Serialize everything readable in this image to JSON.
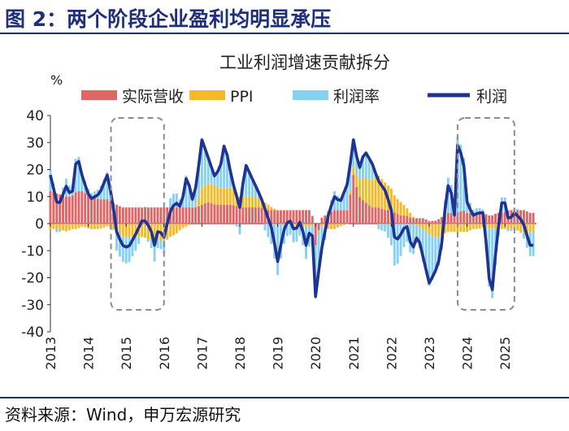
{
  "figure_title": "图 2：两个阶段企业盈利均明显承压",
  "source": "资料来源：Wind，申万宏源研究",
  "colors": {
    "revenue": "#e06666",
    "ppi": "#f6b928",
    "margin": "#86d0f3",
    "profit": "#1f3391",
    "header": "#1f2f7a",
    "box": "#8c8c8c"
  },
  "chart_data": {
    "type": "bar",
    "title": "工业利润增速贡献拆分",
    "ylabel": "%",
    "ylim": [
      -40,
      40
    ],
    "yticks": [
      40,
      30,
      20,
      10,
      0,
      -10,
      -20,
      -30,
      -40
    ],
    "xticks": [
      "2013",
      "2014",
      "2015",
      "2016",
      "2017",
      "2018",
      "2019",
      "2020",
      "2021",
      "2022",
      "2023",
      "2024",
      "2025"
    ],
    "legend": {
      "position": "top",
      "entries": [
        {
          "name": "实际营收",
          "type": "bar"
        },
        {
          "name": "PPI",
          "type": "bar"
        },
        {
          "name": "利润率",
          "type": "bar"
        },
        {
          "name": "利润",
          "type": "line"
        }
      ]
    },
    "x_start": 2013.0,
    "x_end": 2025.833,
    "highlight_periods": [
      [
        2014.6,
        2016.0
      ],
      [
        2023.75,
        2025.25
      ]
    ],
    "key_points": [
      {
        "x": 2013.0,
        "profit": 18,
        "revenue": 12,
        "ppi": -2,
        "margin": 8
      },
      {
        "x": 2013.2,
        "profit": 6,
        "revenue": 11,
        "ppi": -2,
        "margin": -3
      },
      {
        "x": 2013.45,
        "profit": 15,
        "revenue": 10,
        "ppi": -3,
        "margin": 8
      },
      {
        "x": 2013.55,
        "profit": 8,
        "revenue": 10,
        "ppi": -2,
        "margin": 0
      },
      {
        "x": 2013.7,
        "profit": 26,
        "revenue": 12,
        "ppi": -2,
        "margin": 16
      },
      {
        "x": 2013.85,
        "profit": 17,
        "revenue": 12,
        "ppi": -1,
        "margin": 6
      },
      {
        "x": 2014.05,
        "profit": 9,
        "revenue": 10,
        "ppi": -2,
        "margin": 1
      },
      {
        "x": 2014.3,
        "profit": 11,
        "revenue": 9,
        "ppi": -2,
        "margin": 4
      },
      {
        "x": 2014.5,
        "profit": 18,
        "revenue": 9,
        "ppi": -1,
        "margin": 10
      },
      {
        "x": 2014.62,
        "profit": 10,
        "revenue": 8,
        "ppi": -2,
        "margin": 4
      },
      {
        "x": 2014.75,
        "profit": -3,
        "revenue": 7,
        "ppi": -2,
        "margin": -8
      },
      {
        "x": 2014.9,
        "profit": -8,
        "revenue": 6,
        "ppi": -5,
        "margin": -9
      },
      {
        "x": 2015.05,
        "profit": -9,
        "revenue": 6,
        "ppi": -5,
        "margin": -10
      },
      {
        "x": 2015.25,
        "profit": -4,
        "revenue": 6,
        "ppi": -5,
        "margin": -5
      },
      {
        "x": 2015.45,
        "profit": 2,
        "revenue": 6,
        "ppi": -5,
        "margin": 1
      },
      {
        "x": 2015.65,
        "profit": -2,
        "revenue": 6,
        "ppi": -6,
        "margin": -2
      },
      {
        "x": 2015.75,
        "profit": -8,
        "revenue": 6,
        "ppi": -6,
        "margin": -8
      },
      {
        "x": 2015.85,
        "profit": -2,
        "revenue": 6,
        "ppi": -6,
        "margin": -2
      },
      {
        "x": 2016.0,
        "profit": -5,
        "revenue": 6,
        "ppi": -6,
        "margin": -5
      },
      {
        "x": 2016.15,
        "profit": 4,
        "revenue": 6,
        "ppi": -5,
        "margin": 3
      },
      {
        "x": 2016.3,
        "profit": 8,
        "revenue": 6,
        "ppi": -4,
        "margin": 6
      },
      {
        "x": 2016.45,
        "profit": 6,
        "revenue": 6,
        "ppi": -2,
        "margin": 2
      },
      {
        "x": 2016.6,
        "profit": 18,
        "revenue": 6,
        "ppi": -1,
        "margin": 13
      },
      {
        "x": 2016.75,
        "profit": 9,
        "revenue": 6,
        "ppi": 0,
        "margin": 3
      },
      {
        "x": 2016.85,
        "profit": 14,
        "revenue": 6,
        "ppi": 1,
        "margin": 7
      },
      {
        "x": 2017.0,
        "profit": 31,
        "revenue": 7,
        "ppi": 6,
        "margin": 18
      },
      {
        "x": 2017.15,
        "profit": 25,
        "revenue": 8,
        "ppi": 7,
        "margin": 10
      },
      {
        "x": 2017.35,
        "profit": 17,
        "revenue": 7,
        "ppi": 7,
        "margin": 3
      },
      {
        "x": 2017.5,
        "profit": 22,
        "revenue": 7,
        "ppi": 6,
        "margin": 9
      },
      {
        "x": 2017.6,
        "profit": 30,
        "revenue": 7,
        "ppi": 6,
        "margin": 17
      },
      {
        "x": 2017.8,
        "profit": 16,
        "revenue": 7,
        "ppi": 6,
        "margin": 3
      },
      {
        "x": 2018.0,
        "profit": 6,
        "revenue": 6,
        "ppi": 4,
        "margin": -4
      },
      {
        "x": 2018.15,
        "profit": 22,
        "revenue": 6,
        "ppi": 4,
        "margin": 12
      },
      {
        "x": 2018.35,
        "profit": 16,
        "revenue": 6,
        "ppi": 4,
        "margin": 6
      },
      {
        "x": 2018.55,
        "profit": 10,
        "revenue": 6,
        "ppi": 3,
        "margin": 1
      },
      {
        "x": 2018.75,
        "profit": 2,
        "revenue": 5,
        "ppi": 2,
        "margin": -5
      },
      {
        "x": 2018.85,
        "profit": -2,
        "revenue": 5,
        "ppi": 1,
        "margin": -8
      },
      {
        "x": 2019.0,
        "profit": -14,
        "revenue": 5,
        "ppi": 0,
        "margin": -19
      },
      {
        "x": 2019.15,
        "profit": -3,
        "revenue": 5,
        "ppi": 0,
        "margin": -8
      },
      {
        "x": 2019.3,
        "profit": 2,
        "revenue": 5,
        "ppi": 0,
        "margin": -3
      },
      {
        "x": 2019.45,
        "profit": -3,
        "revenue": 5,
        "ppi": -1,
        "margin": -7
      },
      {
        "x": 2019.6,
        "profit": 1,
        "revenue": 5,
        "ppi": -1,
        "margin": -3
      },
      {
        "x": 2019.75,
        "profit": -8,
        "revenue": 5,
        "ppi": -1,
        "margin": -12
      },
      {
        "x": 2019.9,
        "profit": 0,
        "revenue": 5,
        "ppi": -1,
        "margin": -4
      },
      {
        "x": 2020.0,
        "profit": -27,
        "revenue": -8,
        "ppi": 0,
        "margin": -19
      },
      {
        "x": 2020.15,
        "profit": -10,
        "revenue": 2,
        "ppi": -1,
        "margin": -11
      },
      {
        "x": 2020.35,
        "profit": 4,
        "revenue": 4,
        "ppi": -2,
        "margin": 2
      },
      {
        "x": 2020.5,
        "profit": 10,
        "revenue": 5,
        "ppi": -2,
        "margin": 7
      },
      {
        "x": 2020.65,
        "profit": 8,
        "revenue": 5,
        "ppi": -1,
        "margin": 4
      },
      {
        "x": 2020.85,
        "profit": 15,
        "revenue": 5,
        "ppi": 0,
        "margin": 10
      },
      {
        "x": 2021.0,
        "profit": 31,
        "revenue": 18,
        "ppi": 3,
        "margin": 10
      },
      {
        "x": 2021.15,
        "profit": 20,
        "revenue": 10,
        "ppi": 6,
        "margin": 4
      },
      {
        "x": 2021.3,
        "profit": 27,
        "revenue": 8,
        "ppi": 9,
        "margin": 10
      },
      {
        "x": 2021.5,
        "profit": 22,
        "revenue": 6,
        "ppi": 10,
        "margin": 6
      },
      {
        "x": 2021.65,
        "profit": 16,
        "revenue": 6,
        "ppi": 12,
        "margin": -2
      },
      {
        "x": 2021.85,
        "profit": 12,
        "revenue": 5,
        "ppi": 10,
        "margin": -3
      },
      {
        "x": 2022.0,
        "profit": 5,
        "revenue": 5,
        "ppi": 8,
        "margin": -8
      },
      {
        "x": 2022.1,
        "profit": -7,
        "revenue": 4,
        "ppi": 6,
        "margin": -17
      },
      {
        "x": 2022.25,
        "profit": -4,
        "revenue": 3,
        "ppi": 5,
        "margin": -12
      },
      {
        "x": 2022.4,
        "profit": 0,
        "revenue": 3,
        "ppi": 3,
        "margin": -6
      },
      {
        "x": 2022.55,
        "profit": -10,
        "revenue": 2,
        "ppi": 1,
        "margin": -13
      },
      {
        "x": 2022.7,
        "profit": -4,
        "revenue": 2,
        "ppi": -1,
        "margin": -5
      },
      {
        "x": 2022.85,
        "profit": -13,
        "revenue": 2,
        "ppi": -2,
        "margin": -13
      },
      {
        "x": 2023.0,
        "profit": -22,
        "revenue": 1,
        "ppi": -4,
        "margin": -19
      },
      {
        "x": 2023.15,
        "profit": -18,
        "revenue": 1,
        "ppi": -5,
        "margin": -14
      },
      {
        "x": 2023.3,
        "profit": -12,
        "revenue": 2,
        "ppi": -5,
        "margin": -9
      },
      {
        "x": 2023.45,
        "profit": 10,
        "revenue": 4,
        "ppi": -3,
        "margin": 9
      },
      {
        "x": 2023.55,
        "profit": 18,
        "revenue": 4,
        "ppi": -3,
        "margin": 17
      },
      {
        "x": 2023.65,
        "profit": -2,
        "revenue": 4,
        "ppi": -3,
        "margin": -3
      },
      {
        "x": 2023.75,
        "profit": 29,
        "revenue": 4,
        "ppi": -3,
        "margin": 28
      },
      {
        "x": 2023.9,
        "profit": 24,
        "revenue": 5,
        "ppi": -3,
        "margin": 22
      },
      {
        "x": 2024.0,
        "profit": 8,
        "revenue": 4,
        "ppi": -3,
        "margin": 7
      },
      {
        "x": 2024.15,
        "profit": 3,
        "revenue": 4,
        "ppi": -2,
        "margin": 1
      },
      {
        "x": 2024.3,
        "profit": 4,
        "revenue": 4,
        "ppi": -2,
        "margin": 2
      },
      {
        "x": 2024.45,
        "profit": 4,
        "revenue": 4,
        "ppi": -1,
        "margin": 1
      },
      {
        "x": 2024.55,
        "profit": -17,
        "revenue": 3,
        "ppi": -2,
        "margin": -18
      },
      {
        "x": 2024.65,
        "profit": -27,
        "revenue": 3,
        "ppi": -2,
        "margin": -28
      },
      {
        "x": 2024.8,
        "profit": -4,
        "revenue": 4,
        "ppi": -2,
        "margin": -6
      },
      {
        "x": 2024.95,
        "profit": 11,
        "revenue": 4,
        "ppi": -2,
        "margin": 9
      },
      {
        "x": 2025.1,
        "profit": 1,
        "revenue": 5,
        "ppi": -2,
        "margin": -2
      },
      {
        "x": 2025.25,
        "profit": 4,
        "revenue": 5,
        "ppi": -2,
        "margin": 1
      },
      {
        "x": 2025.4,
        "profit": 2,
        "revenue": 5,
        "ppi": -3,
        "margin": 0
      },
      {
        "x": 2025.52,
        "profit": -1,
        "revenue": 5,
        "ppi": -3,
        "margin": -3
      },
      {
        "x": 2025.65,
        "profit": -8,
        "revenue": 4,
        "ppi": -3,
        "margin": -9
      }
    ]
  }
}
